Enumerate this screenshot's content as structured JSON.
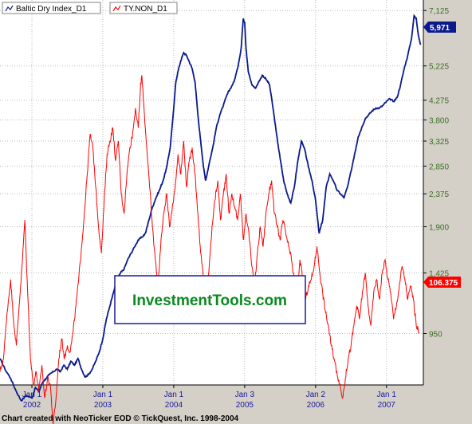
{
  "footer": "Chart created with NeoTicker EOD © TickQuest, Inc. 1998-2004",
  "watermark": "InvestmentTools.com",
  "colors": {
    "background": "#d4d0c8",
    "plot": "#ffffff",
    "series_1": "#0a1a8c",
    "series_2": "#ff0000",
    "watermark": "#0a8a1f",
    "watermark_border": "#1a1a9e"
  },
  "icons": {
    "legend": "line-chart-icon"
  },
  "chart_data": {
    "type": "line",
    "grid": true,
    "legend": "top-left",
    "ylim": [
      475,
      7125
    ],
    "y_ticks": [
      "7,125",
      "5,225",
      "4,275",
      "3,800",
      "3,325",
      "2,850",
      "2,375",
      "1,900",
      "1,425",
      "950"
    ],
    "y_tick_values": [
      7125,
      5225,
      4275,
      3800,
      3325,
      2850,
      2375,
      1900,
      1425,
      950
    ],
    "y_tick_positions": [
      5.84,
      5.42,
      5.16,
      5.01,
      4.85,
      4.66,
      4.45,
      4.2,
      3.85,
      3.39
    ],
    "x_ticks": [
      {
        "month": "Jan 1",
        "year": "2002",
        "t": 2002.0
      },
      {
        "month": "Jan 1",
        "year": "2003",
        "t": 2003.0
      },
      {
        "month": "Jan 1",
        "year": "2004",
        "t": 2004.0
      },
      {
        "month": "Jan 3",
        "year": "2005",
        "t": 2005.0
      },
      {
        "month": "Jan 2",
        "year": "2006",
        "t": 2006.0
      },
      {
        "month": "Jan 1",
        "year": "2007",
        "t": 2007.0
      }
    ],
    "xlim": [
      2001.55,
      2007.52
    ],
    "series": [
      {
        "name": "Baltic Dry Index_D1",
        "last_label": "5,971",
        "points": [
          [
            2001.55,
            3.2
          ],
          [
            2001.62,
            3.12
          ],
          [
            2001.7,
            3.05
          ],
          [
            2001.78,
            2.95
          ],
          [
            2001.85,
            2.88
          ],
          [
            2001.92,
            2.92
          ],
          [
            2002.0,
            2.9
          ],
          [
            2002.05,
            2.98
          ],
          [
            2002.1,
            2.95
          ],
          [
            2002.15,
            3.02
          ],
          [
            2002.2,
            3.05
          ],
          [
            2002.25,
            3.08
          ],
          [
            2002.3,
            3.1
          ],
          [
            2002.35,
            3.12
          ],
          [
            2002.4,
            3.1
          ],
          [
            2002.45,
            3.15
          ],
          [
            2002.5,
            3.12
          ],
          [
            2002.55,
            3.18
          ],
          [
            2002.6,
            3.15
          ],
          [
            2002.65,
            3.2
          ],
          [
            2002.7,
            3.12
          ],
          [
            2002.75,
            3.06
          ],
          [
            2002.8,
            3.08
          ],
          [
            2002.85,
            3.12
          ],
          [
            2002.9,
            3.18
          ],
          [
            2002.95,
            3.25
          ],
          [
            2003.0,
            3.35
          ],
          [
            2003.05,
            3.5
          ],
          [
            2003.1,
            3.6
          ],
          [
            2003.15,
            3.7
          ],
          [
            2003.2,
            3.8
          ],
          [
            2003.25,
            3.85
          ],
          [
            2003.3,
            3.88
          ],
          [
            2003.35,
            3.95
          ],
          [
            2003.4,
            4.0
          ],
          [
            2003.45,
            4.05
          ],
          [
            2003.5,
            4.1
          ],
          [
            2003.55,
            4.12
          ],
          [
            2003.6,
            4.15
          ],
          [
            2003.65,
            4.25
          ],
          [
            2003.7,
            4.35
          ],
          [
            2003.75,
            4.42
          ],
          [
            2003.8,
            4.48
          ],
          [
            2003.85,
            4.55
          ],
          [
            2003.9,
            4.65
          ],
          [
            2003.95,
            4.8
          ],
          [
            2004.0,
            5.1
          ],
          [
            2004.03,
            5.3
          ],
          [
            2004.06,
            5.38
          ],
          [
            2004.1,
            5.46
          ],
          [
            2004.14,
            5.52
          ],
          [
            2004.18,
            5.5
          ],
          [
            2004.22,
            5.45
          ],
          [
            2004.26,
            5.4
          ],
          [
            2004.3,
            5.3
          ],
          [
            2004.34,
            5.05
          ],
          [
            2004.38,
            4.85
          ],
          [
            2004.42,
            4.65
          ],
          [
            2004.45,
            4.55
          ],
          [
            2004.5,
            4.68
          ],
          [
            2004.55,
            4.8
          ],
          [
            2004.6,
            4.95
          ],
          [
            2004.65,
            5.05
          ],
          [
            2004.7,
            5.12
          ],
          [
            2004.75,
            5.2
          ],
          [
            2004.8,
            5.25
          ],
          [
            2004.85,
            5.3
          ],
          [
            2004.9,
            5.4
          ],
          [
            2004.95,
            5.55
          ],
          [
            2004.98,
            5.78
          ],
          [
            2005.0,
            5.75
          ],
          [
            2005.02,
            5.55
          ],
          [
            2005.05,
            5.38
          ],
          [
            2005.1,
            5.28
          ],
          [
            2005.15,
            5.25
          ],
          [
            2005.2,
            5.3
          ],
          [
            2005.25,
            5.35
          ],
          [
            2005.3,
            5.32
          ],
          [
            2005.35,
            5.28
          ],
          [
            2005.4,
            5.1
          ],
          [
            2005.45,
            4.9
          ],
          [
            2005.5,
            4.72
          ],
          [
            2005.55,
            4.55
          ],
          [
            2005.6,
            4.45
          ],
          [
            2005.65,
            4.38
          ],
          [
            2005.7,
            4.5
          ],
          [
            2005.75,
            4.7
          ],
          [
            2005.8,
            4.85
          ],
          [
            2005.85,
            4.78
          ],
          [
            2005.9,
            4.65
          ],
          [
            2005.95,
            4.55
          ],
          [
            2006.0,
            4.4
          ],
          [
            2006.05,
            4.15
          ],
          [
            2006.1,
            4.25
          ],
          [
            2006.15,
            4.5
          ],
          [
            2006.2,
            4.6
          ],
          [
            2006.25,
            4.55
          ],
          [
            2006.3,
            4.48
          ],
          [
            2006.35,
            4.45
          ],
          [
            2006.4,
            4.42
          ],
          [
            2006.45,
            4.5
          ],
          [
            2006.5,
            4.62
          ],
          [
            2006.55,
            4.75
          ],
          [
            2006.6,
            4.88
          ],
          [
            2006.65,
            4.95
          ],
          [
            2006.7,
            5.02
          ],
          [
            2006.75,
            5.05
          ],
          [
            2006.8,
            5.08
          ],
          [
            2006.85,
            5.1
          ],
          [
            2006.9,
            5.1
          ],
          [
            2006.95,
            5.12
          ],
          [
            2007.0,
            5.15
          ],
          [
            2007.05,
            5.17
          ],
          [
            2007.1,
            5.15
          ],
          [
            2007.15,
            5.18
          ],
          [
            2007.2,
            5.28
          ],
          [
            2007.25,
            5.4
          ],
          [
            2007.3,
            5.5
          ],
          [
            2007.35,
            5.62
          ],
          [
            2007.39,
            5.8
          ],
          [
            2007.42,
            5.78
          ],
          [
            2007.45,
            5.65
          ],
          [
            2007.48,
            5.58
          ]
        ]
      },
      {
        "name": "TY.NON_D1",
        "last_label": "106.375",
        "points": [
          [
            2001.55,
            3.1
          ],
          [
            2001.6,
            3.2
          ],
          [
            2001.65,
            3.55
          ],
          [
            2001.7,
            3.8
          ],
          [
            2001.74,
            3.5
          ],
          [
            2001.78,
            3.3
          ],
          [
            2001.82,
            3.6
          ],
          [
            2001.86,
            3.9
          ],
          [
            2001.9,
            4.25
          ],
          [
            2001.94,
            3.7
          ],
          [
            2001.98,
            3.2
          ],
          [
            2002.02,
            3.0
          ],
          [
            2002.06,
            3.1
          ],
          [
            2002.1,
            2.95
          ],
          [
            2002.14,
            3.15
          ],
          [
            2002.18,
            2.9
          ],
          [
            2002.22,
            3.05
          ],
          [
            2002.26,
            3.0
          ],
          [
            2002.3,
            2.7
          ],
          [
            2002.34,
            2.9
          ],
          [
            2002.38,
            3.2
          ],
          [
            2002.42,
            3.35
          ],
          [
            2002.46,
            3.2
          ],
          [
            2002.5,
            3.3
          ],
          [
            2002.54,
            3.25
          ],
          [
            2002.58,
            3.4
          ],
          [
            2002.62,
            3.6
          ],
          [
            2002.66,
            3.8
          ],
          [
            2002.7,
            4.05
          ],
          [
            2002.74,
            4.3
          ],
          [
            2002.78,
            4.6
          ],
          [
            2002.82,
            4.9
          ],
          [
            2002.86,
            4.8
          ],
          [
            2002.9,
            4.5
          ],
          [
            2002.94,
            4.2
          ],
          [
            2002.98,
            4.0
          ],
          [
            2003.02,
            4.4
          ],
          [
            2003.06,
            4.75
          ],
          [
            2003.1,
            4.85
          ],
          [
            2003.14,
            4.95
          ],
          [
            2003.18,
            4.7
          ],
          [
            2003.22,
            4.85
          ],
          [
            2003.26,
            4.45
          ],
          [
            2003.3,
            4.3
          ],
          [
            2003.34,
            4.6
          ],
          [
            2003.38,
            4.8
          ],
          [
            2003.42,
            4.9
          ],
          [
            2003.46,
            5.1
          ],
          [
            2003.5,
            4.95
          ],
          [
            2003.53,
            5.25
          ],
          [
            2003.55,
            5.35
          ],
          [
            2003.58,
            5.1
          ],
          [
            2003.62,
            4.8
          ],
          [
            2003.66,
            4.5
          ],
          [
            2003.7,
            4.2
          ],
          [
            2003.74,
            3.95
          ],
          [
            2003.78,
            3.75
          ],
          [
            2003.82,
            4.1
          ],
          [
            2003.86,
            4.3
          ],
          [
            2003.9,
            4.45
          ],
          [
            2003.94,
            4.2
          ],
          [
            2003.98,
            4.35
          ],
          [
            2004.02,
            4.5
          ],
          [
            2004.06,
            4.75
          ],
          [
            2004.1,
            4.6
          ],
          [
            2004.14,
            4.85
          ],
          [
            2004.18,
            4.5
          ],
          [
            2004.22,
            4.7
          ],
          [
            2004.26,
            4.8
          ],
          [
            2004.3,
            4.6
          ],
          [
            2004.34,
            4.3
          ],
          [
            2004.38,
            4.0
          ],
          [
            2004.42,
            3.8
          ],
          [
            2004.46,
            3.65
          ],
          [
            2004.5,
            3.9
          ],
          [
            2004.54,
            4.2
          ],
          [
            2004.58,
            4.4
          ],
          [
            2004.62,
            4.55
          ],
          [
            2004.66,
            4.25
          ],
          [
            2004.7,
            4.45
          ],
          [
            2004.74,
            4.6
          ],
          [
            2004.78,
            4.3
          ],
          [
            2004.82,
            4.45
          ],
          [
            2004.86,
            4.35
          ],
          [
            2004.9,
            4.25
          ],
          [
            2004.94,
            4.45
          ],
          [
            2004.98,
            4.1
          ],
          [
            2005.02,
            4.3
          ],
          [
            2005.06,
            4.15
          ],
          [
            2005.1,
            3.9
          ],
          [
            2005.14,
            3.75
          ],
          [
            2005.18,
            4.0
          ],
          [
            2005.22,
            4.2
          ],
          [
            2005.26,
            4.05
          ],
          [
            2005.3,
            4.3
          ],
          [
            2005.34,
            4.45
          ],
          [
            2005.38,
            4.55
          ],
          [
            2005.42,
            4.3
          ],
          [
            2005.46,
            4.2
          ],
          [
            2005.5,
            4.1
          ],
          [
            2005.54,
            4.25
          ],
          [
            2005.58,
            4.15
          ],
          [
            2005.62,
            4.05
          ],
          [
            2005.66,
            3.95
          ],
          [
            2005.7,
            3.8
          ],
          [
            2005.74,
            3.7
          ],
          [
            2005.78,
            3.95
          ],
          [
            2005.82,
            3.8
          ],
          [
            2005.86,
            3.65
          ],
          [
            2005.9,
            3.75
          ],
          [
            2005.94,
            3.8
          ],
          [
            2005.98,
            3.9
          ],
          [
            2006.02,
            4.05
          ],
          [
            2006.06,
            3.85
          ],
          [
            2006.1,
            3.7
          ],
          [
            2006.14,
            3.55
          ],
          [
            2006.18,
            3.45
          ],
          [
            2006.22,
            3.3
          ],
          [
            2006.26,
            3.2
          ],
          [
            2006.3,
            3.1
          ],
          [
            2006.34,
            3.0
          ],
          [
            2006.38,
            2.9
          ],
          [
            2006.42,
            3.05
          ],
          [
            2006.46,
            3.2
          ],
          [
            2006.5,
            3.3
          ],
          [
            2006.54,
            3.45
          ],
          [
            2006.58,
            3.6
          ],
          [
            2006.62,
            3.5
          ],
          [
            2006.66,
            3.7
          ],
          [
            2006.7,
            3.85
          ],
          [
            2006.74,
            3.6
          ],
          [
            2006.78,
            3.45
          ],
          [
            2006.82,
            3.7
          ],
          [
            2006.86,
            3.8
          ],
          [
            2006.9,
            3.65
          ],
          [
            2006.94,
            3.85
          ],
          [
            2006.98,
            3.95
          ],
          [
            2007.02,
            3.8
          ],
          [
            2007.06,
            3.7
          ],
          [
            2007.1,
            3.5
          ],
          [
            2007.14,
            3.6
          ],
          [
            2007.18,
            3.75
          ],
          [
            2007.22,
            3.9
          ],
          [
            2007.26,
            3.8
          ],
          [
            2007.3,
            3.65
          ],
          [
            2007.34,
            3.75
          ],
          [
            2007.38,
            3.65
          ],
          [
            2007.42,
            3.45
          ],
          [
            2007.46,
            3.4
          ]
        ]
      }
    ]
  }
}
